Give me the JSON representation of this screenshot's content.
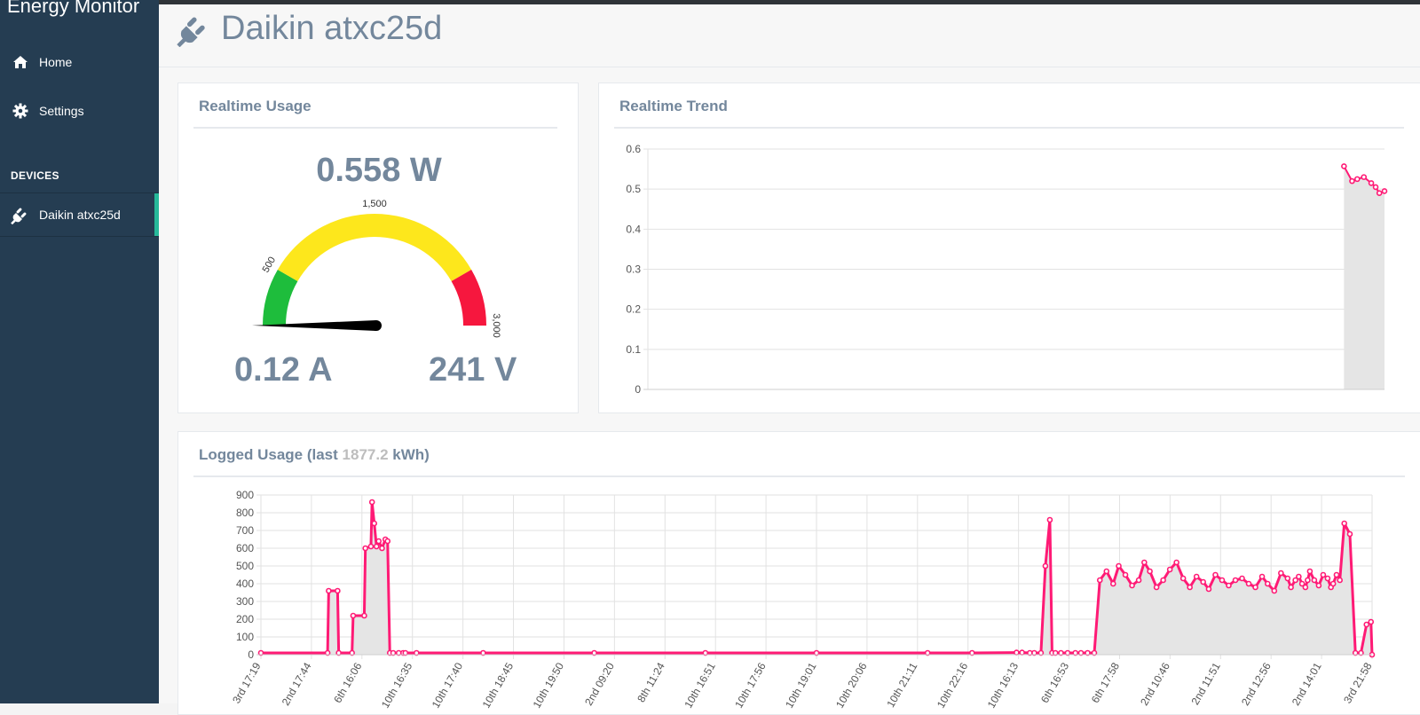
{
  "app": {
    "title": "Energy Monitor"
  },
  "sidebar": {
    "items": [
      {
        "label": "Home",
        "icon": "home-icon"
      },
      {
        "label": "Settings",
        "icon": "gear-icon"
      }
    ],
    "devices_heading": "DEVICES",
    "devices": [
      {
        "label": "Daikin atxc25d",
        "icon": "plug-icon",
        "active": true
      }
    ]
  },
  "page": {
    "title": "Daikin atxc25d",
    "icon": "plug-icon"
  },
  "realtime_usage": {
    "title": "Realtime Usage",
    "watts": "0.558 W",
    "amps": "0.12 A",
    "volts": "241 V",
    "gauge": {
      "tick_labels": [
        "500",
        "1,500",
        "3,000"
      ],
      "max": 3000,
      "value": 0.558,
      "colors": {
        "green": "#1ebd3c",
        "yellow": "#fde71c",
        "red": "#f6173e",
        "needle": "#000000"
      }
    }
  },
  "realtime_trend": {
    "title": "Realtime Trend"
  },
  "logged_usage": {
    "title_prefix": "Logged Usage (last ",
    "title_value": "1877.2",
    "title_suffix": " kWh)"
  },
  "colors": {
    "accent": "#26b99a",
    "sidebar": "#253d52",
    "line": "#ff1a75",
    "fill": "#e5e5e5",
    "text": "#73879c"
  },
  "chart_data": [
    {
      "type": "area",
      "name": "realtime-trend",
      "ylim": [
        0,
        0.6
      ],
      "yticks": [
        "0",
        "0.1",
        "0.2",
        "0.3",
        "0.4",
        "0.5",
        "0.6"
      ],
      "xlim": [
        0,
        100
      ],
      "x": [
        94.5,
        95.6,
        96.3,
        97.2,
        98.2,
        98.8,
        99.3,
        100
      ],
      "y": [
        0.557,
        0.52,
        0.525,
        0.53,
        0.515,
        0.505,
        0.49,
        0.495
      ]
    },
    {
      "type": "area",
      "name": "logged-usage",
      "ylim": [
        0,
        900
      ],
      "yticks": [
        "0",
        "100",
        "200",
        "300",
        "400",
        "500",
        "600",
        "700",
        "800",
        "900"
      ],
      "xlim": [
        0,
        100
      ],
      "xticks": [
        "3rd 17:19",
        "2nd 17:44",
        "6th 16:06",
        "10th 16:35",
        "10th 17:40",
        "10th 18:45",
        "10th 19:50",
        "2nd 09:20",
        "8th 11:24",
        "10th 16:51",
        "10th 17:56",
        "10th 19:01",
        "10th 20:06",
        "10th 21:11",
        "10th 22:16",
        "10th 16:13",
        "6th 16:53",
        "6th 17:58",
        "2nd 10:46",
        "2nd 11:51",
        "2nd 12:56",
        "2nd 14:01",
        "3rd 21:58"
      ],
      "x": [
        0.0,
        6.0,
        6.1,
        6.9,
        7.0,
        8.2,
        8.3,
        9.3,
        9.4,
        9.9,
        10.0,
        10.2,
        10.4,
        10.6,
        10.9,
        11.2,
        11.4,
        11.6,
        11.9,
        12.4,
        12.8,
        13.0,
        14.0,
        20.0,
        30.0,
        40.0,
        50.0,
        60.0,
        64.0,
        68.0,
        68.5,
        69.2,
        69.6,
        70.2,
        70.6,
        71.0,
        71.2,
        71.5,
        72.0,
        72.6,
        73.3,
        73.8,
        74.4,
        75.0,
        75.5,
        76.1,
        76.7,
        77.2,
        77.8,
        78.4,
        79.0,
        79.5,
        80.0,
        80.6,
        81.2,
        81.8,
        82.4,
        83.0,
        83.6,
        84.2,
        84.8,
        85.3,
        85.9,
        86.5,
        87.1,
        87.7,
        88.3,
        88.9,
        89.5,
        90.1,
        90.6,
        91.2,
        91.8,
        92.4,
        92.7,
        93.1,
        93.4,
        93.7,
        94.0,
        94.2,
        94.4,
        94.8,
        95.2,
        95.6,
        96.0,
        96.3,
        96.5,
        96.8,
        97.1,
        97.5,
        98.0,
        98.5,
        99.0,
        99.5,
        99.9,
        100.0
      ],
      "y": [
        10,
        10,
        360,
        360,
        10,
        10,
        220,
        220,
        600,
        610,
        860,
        740,
        610,
        640,
        600,
        650,
        640,
        10,
        10,
        10,
        10,
        10,
        10,
        10,
        10,
        10,
        10,
        10,
        10,
        12,
        12,
        10,
        10,
        10,
        500,
        760,
        10,
        10,
        10,
        10,
        10,
        10,
        10,
        10,
        420,
        470,
        400,
        500,
        450,
        390,
        420,
        520,
        470,
        380,
        420,
        480,
        520,
        430,
        380,
        440,
        410,
        370,
        450,
        420,
        390,
        420,
        430,
        400,
        380,
        440,
        400,
        360,
        460,
        430,
        380,
        420,
        440,
        400,
        380,
        420,
        470,
        420,
        390,
        450,
        430,
        380,
        400,
        450,
        420,
        740,
        680,
        10,
        10,
        170,
        185,
        0
      ]
    }
  ]
}
